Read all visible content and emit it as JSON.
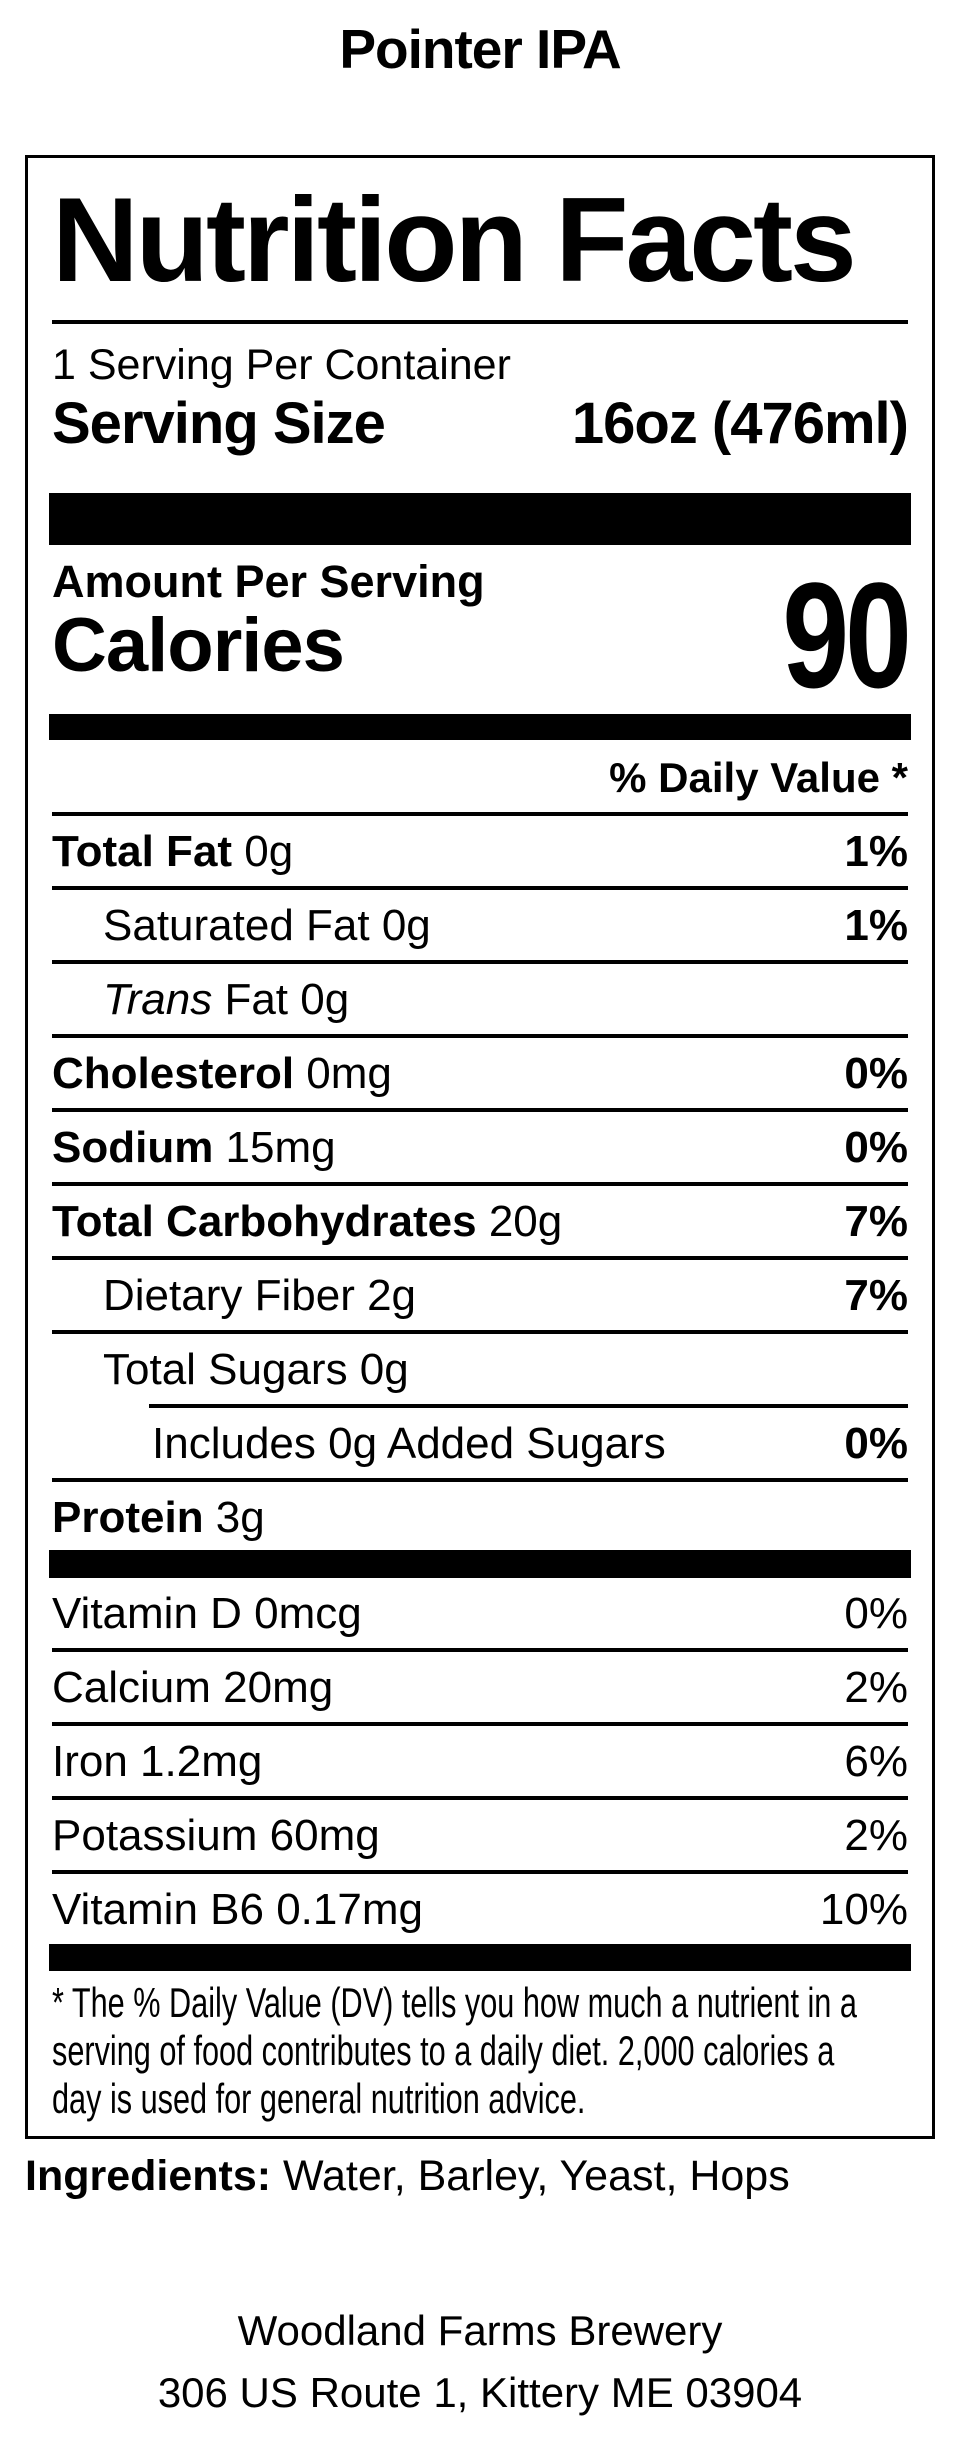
{
  "product": {
    "title": "Pointer IPA"
  },
  "label": {
    "title": "Nutrition Facts",
    "servings_per_container": "1 Serving Per Container",
    "serving_size_label": "Serving Size",
    "serving_size_value": "16oz (476ml)",
    "amount_per_serving": "Amount Per Serving",
    "calories_label": "Calories",
    "calories_value": "90",
    "daily_value_header": "% Daily Value *",
    "rows": [
      {
        "bold": "Total Fat",
        "rest": " 0g",
        "dv": "1%"
      },
      {
        "rest": "Saturated Fat 0g",
        "dv": "1%"
      },
      {
        "italic": "Trans",
        "rest": " Fat 0g",
        "dv": ""
      },
      {
        "bold": "Cholesterol",
        "rest": " 0mg",
        "dv": "0%"
      },
      {
        "bold": "Sodium",
        "rest": " 15mg",
        "dv": "0%"
      },
      {
        "bold": "Total Carbohydrates",
        "rest": " 20g",
        "dv": "7%"
      },
      {
        "rest": "Dietary Fiber 2g",
        "dv": "7%"
      },
      {
        "rest": "Total Sugars 0g",
        "dv": ""
      },
      {
        "rest": "Includes 0g Added Sugars",
        "dv": "0%"
      },
      {
        "bold": "Protein",
        "rest": " 3g",
        "dv": ""
      }
    ],
    "vitamins": [
      {
        "rest": "Vitamin D 0mcg",
        "dv": "0%"
      },
      {
        "rest": "Calcium 20mg",
        "dv": "2%"
      },
      {
        "rest": "Iron 1.2mg",
        "dv": "6%"
      },
      {
        "rest": "Potassium 60mg",
        "dv": "2%"
      },
      {
        "rest": "Vitamin B6 0.17mg",
        "dv": "10%"
      }
    ],
    "footnote_lines": [
      "* The % Daily Value (DV) tells you how much a nutrient in a",
      "serving of food contributes to a daily diet. 2,000 calories a",
      "day is used for general nutrition advice."
    ]
  },
  "ingredients": {
    "label": "Ingredients:",
    "value": " Water, Barley, Yeast, Hops"
  },
  "footer": {
    "brewery": "Woodland Farms Brewery",
    "address": "306 US Route 1, Kittery ME 03904"
  },
  "colors": {
    "ink": "#000000",
    "paper": "#ffffff"
  }
}
